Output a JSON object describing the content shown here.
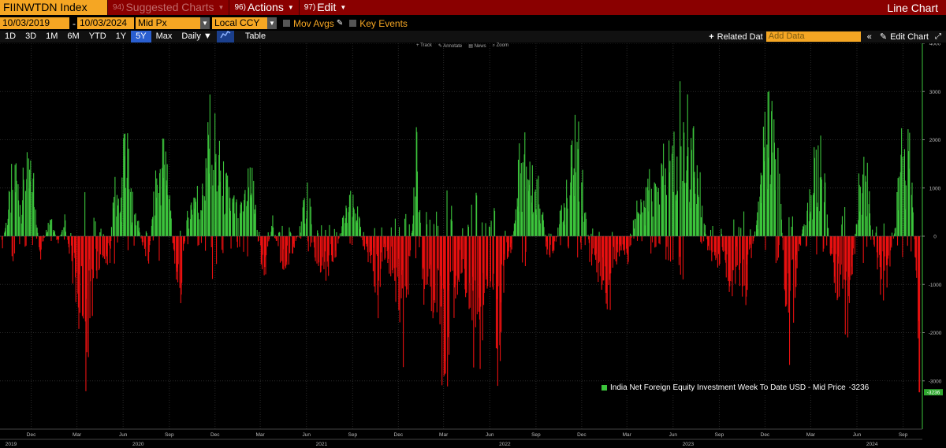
{
  "toolbar": {
    "ticker": "FIINWTDN Index",
    "suggested_num": "94)",
    "suggested_label": "Suggested Charts",
    "actions_num": "96)",
    "actions_label": "Actions",
    "edit_num": "97)",
    "edit_label": "Edit",
    "chart_type": "Line Chart"
  },
  "settings": {
    "start_date": "10/03/2019",
    "end_date": "10/03/2024",
    "date_sep": "-",
    "price_field": "Mid Px",
    "currency": "Local CCY",
    "mov_avgs": "Mov Avgs",
    "key_events": "Key Events"
  },
  "periods": [
    "1D",
    "3D",
    "1M",
    "6M",
    "YTD",
    "1Y",
    "5Y",
    "Max"
  ],
  "active_period": "5Y",
  "frequency": "Daily",
  "table_label": "Table",
  "related_data": "Related Dat",
  "add_data_placeholder": "Add Data",
  "edit_chart": "Edit Chart",
  "chart_tools": [
    "Track",
    "Annotate",
    "News",
    "Zoom"
  ],
  "colors": {
    "positive": "#3cc43c",
    "negative": "#e81010",
    "accent": "#f5a623",
    "topbar": "#8a0000"
  },
  "chart_data": {
    "type": "bar",
    "legend": {
      "label": "India Net Foreign Equity Investment Week To Date USD - Mid Price",
      "value": "-3236",
      "placement": "bottom-right"
    },
    "last_value": -3236,
    "last_value_label": "-3236",
    "ylim": [
      -4000,
      4000
    ],
    "y_ticks": [
      4000,
      3000,
      2000,
      1000,
      0,
      -1000,
      -2000,
      -3000
    ],
    "x_start": "2019-10-03",
    "x_end": "2024-10-03",
    "x_ticks": [
      {
        "label": "Dec",
        "date": "2019-12-01"
      },
      {
        "label": "Mar",
        "date": "2020-03-01"
      },
      {
        "label": "Jun",
        "date": "2020-06-01"
      },
      {
        "label": "Sep",
        "date": "2020-09-01"
      },
      {
        "label": "Dec",
        "date": "2020-12-01"
      },
      {
        "label": "Mar",
        "date": "2021-03-01"
      },
      {
        "label": "Jun",
        "date": "2021-06-01"
      },
      {
        "label": "Sep",
        "date": "2021-09-01"
      },
      {
        "label": "Dec",
        "date": "2021-12-01"
      },
      {
        "label": "Mar",
        "date": "2022-03-01"
      },
      {
        "label": "Jun",
        "date": "2022-06-01"
      },
      {
        "label": "Sep",
        "date": "2022-09-01"
      },
      {
        "label": "Dec",
        "date": "2022-12-01"
      },
      {
        "label": "Mar",
        "date": "2023-03-01"
      },
      {
        "label": "Jun",
        "date": "2023-06-01"
      },
      {
        "label": "Sep",
        "date": "2023-09-01"
      },
      {
        "label": "Dec",
        "date": "2023-12-01"
      },
      {
        "label": "Mar",
        "date": "2024-03-01"
      },
      {
        "label": "Jun",
        "date": "2024-06-01"
      },
      {
        "label": "Sep",
        "date": "2024-09-01"
      }
    ],
    "year_labels": [
      {
        "label": "2019",
        "date": "2019-10-03"
      },
      {
        "label": "2020",
        "date": "2020-07-01"
      },
      {
        "label": "2021",
        "date": "2021-07-01"
      },
      {
        "label": "2022",
        "date": "2022-07-01"
      },
      {
        "label": "2023",
        "date": "2023-07-01"
      },
      {
        "label": "2024",
        "date": "2024-07-01"
      }
    ],
    "series_points": [
      [
        "2019-10-03",
        -300
      ],
      [
        "2019-10-17",
        800
      ],
      [
        "2019-10-28",
        1800
      ],
      [
        "2019-11-08",
        900
      ],
      [
        "2019-11-20",
        1500
      ],
      [
        "2019-12-05",
        1300
      ],
      [
        "2019-12-18",
        -500
      ],
      [
        "2020-01-08",
        600
      ],
      [
        "2020-01-22",
        -200
      ],
      [
        "2020-02-05",
        400
      ],
      [
        "2020-02-20",
        -800
      ],
      [
        "2020-03-02",
        -1500
      ],
      [
        "2020-03-10",
        -2200
      ],
      [
        "2020-03-17",
        -2800
      ],
      [
        "2020-03-26",
        -1800
      ],
      [
        "2020-04-08",
        -900
      ],
      [
        "2020-04-20",
        -400
      ],
      [
        "2020-05-05",
        -600
      ],
      [
        "2020-05-14",
        1700
      ],
      [
        "2020-05-25",
        500
      ],
      [
        "2020-06-04",
        2500
      ],
      [
        "2020-06-15",
        1000
      ],
      [
        "2020-06-29",
        400
      ],
      [
        "2020-07-10",
        -300
      ],
      [
        "2020-07-22",
        -500
      ],
      [
        "2020-08-03",
        1200
      ],
      [
        "2020-08-14",
        2000
      ],
      [
        "2020-08-28",
        1800
      ],
      [
        "2020-09-08",
        -400
      ],
      [
        "2020-09-22",
        -1300
      ],
      [
        "2020-10-05",
        400
      ],
      [
        "2020-10-20",
        1100
      ],
      [
        "2020-11-04",
        900
      ],
      [
        "2020-11-13",
        1900
      ],
      [
        "2020-11-24",
        2800
      ],
      [
        "2020-12-04",
        2000
      ],
      [
        "2020-12-15",
        1400
      ],
      [
        "2021-01-05",
        800
      ],
      [
        "2021-01-20",
        600
      ],
      [
        "2021-02-03",
        1600
      ],
      [
        "2021-02-15",
        1200
      ],
      [
        "2021-02-26",
        -400
      ],
      [
        "2021-03-10",
        -800
      ],
      [
        "2021-03-24",
        500
      ],
      [
        "2021-04-07",
        -600
      ],
      [
        "2021-04-20",
        -800
      ],
      [
        "2021-05-05",
        -300
      ],
      [
        "2021-05-20",
        300
      ],
      [
        "2021-06-04",
        1300
      ],
      [
        "2021-06-18",
        -500
      ],
      [
        "2021-07-02",
        -900
      ],
      [
        "2021-07-16",
        -700
      ],
      [
        "2021-07-29",
        -400
      ],
      [
        "2021-08-12",
        400
      ],
      [
        "2021-08-27",
        800
      ],
      [
        "2021-09-10",
        600
      ],
      [
        "2021-09-24",
        -400
      ],
      [
        "2021-10-08",
        -600
      ],
      [
        "2021-10-22",
        -1500
      ],
      [
        "2021-11-05",
        -400
      ],
      [
        "2021-11-19",
        -900
      ],
      [
        "2021-12-03",
        -1500
      ],
      [
        "2021-12-10",
        -2400
      ],
      [
        "2021-12-20",
        -1300
      ],
      [
        "2022-01-06",
        2100
      ],
      [
        "2022-01-20",
        -1600
      ],
      [
        "2022-02-03",
        -1300
      ],
      [
        "2022-02-17",
        -2500
      ],
      [
        "2022-03-03",
        -2800
      ],
      [
        "2022-03-11",
        -2500
      ],
      [
        "2022-03-24",
        -1500
      ],
      [
        "2022-04-07",
        -600
      ],
      [
        "2022-04-21",
        -1800
      ],
      [
        "2022-05-05",
        -2800
      ],
      [
        "2022-05-20",
        -1800
      ],
      [
        "2022-06-03",
        -900
      ],
      [
        "2022-06-17",
        -2900
      ],
      [
        "2022-07-01",
        -500
      ],
      [
        "2022-07-15",
        -300
      ],
      [
        "2022-07-29",
        1700
      ],
      [
        "2022-08-12",
        2000
      ],
      [
        "2022-08-26",
        1200
      ],
      [
        "2022-09-09",
        1000
      ],
      [
        "2022-09-23",
        -600
      ],
      [
        "2022-10-07",
        -400
      ],
      [
        "2022-10-21",
        700
      ],
      [
        "2022-11-04",
        1100
      ],
      [
        "2022-11-18",
        2600
      ],
      [
        "2022-12-02",
        1300
      ],
      [
        "2022-12-16",
        -500
      ],
      [
        "2023-01-06",
        -900
      ],
      [
        "2023-01-20",
        -1800
      ],
      [
        "2023-02-03",
        -600
      ],
      [
        "2023-02-17",
        -400
      ],
      [
        "2023-03-03",
        -700
      ],
      [
        "2023-03-17",
        800
      ],
      [
        "2023-03-31",
        600
      ],
      [
        "2023-04-14",
        1200
      ],
      [
        "2023-04-28",
        1000
      ],
      [
        "2023-05-12",
        1600
      ],
      [
        "2023-05-26",
        2000
      ],
      [
        "2023-06-09",
        1800
      ],
      [
        "2023-06-16",
        3400
      ],
      [
        "2023-06-30",
        2400
      ],
      [
        "2023-07-14",
        1900
      ],
      [
        "2023-07-28",
        800
      ],
      [
        "2023-08-11",
        -600
      ],
      [
        "2023-08-25",
        -800
      ],
      [
        "2023-09-08",
        -400
      ],
      [
        "2023-09-22",
        -1300
      ],
      [
        "2023-10-06",
        -800
      ],
      [
        "2023-10-20",
        -1500
      ],
      [
        "2023-11-03",
        -400
      ],
      [
        "2023-11-17",
        600
      ],
      [
        "2023-12-01",
        2600
      ],
      [
        "2023-12-15",
        2700
      ],
      [
        "2023-12-29",
        1300
      ],
      [
        "2024-01-12",
        -1800
      ],
      [
        "2024-01-19",
        -2400
      ],
      [
        "2024-02-02",
        -800
      ],
      [
        "2024-02-16",
        400
      ],
      [
        "2024-03-01",
        1100
      ],
      [
        "2024-03-15",
        2200
      ],
      [
        "2024-03-29",
        1000
      ],
      [
        "2024-04-12",
        -1000
      ],
      [
        "2024-04-26",
        -1200
      ],
      [
        "2024-05-10",
        -2000
      ],
      [
        "2024-05-24",
        -900
      ],
      [
        "2024-06-07",
        1700
      ],
      [
        "2024-06-21",
        1400
      ],
      [
        "2024-07-05",
        -400
      ],
      [
        "2024-07-19",
        -1200
      ],
      [
        "2024-08-02",
        -1000
      ],
      [
        "2024-08-16",
        300
      ],
      [
        "2024-08-30",
        2500
      ],
      [
        "2024-09-13",
        1800
      ],
      [
        "2024-09-20",
        1000
      ],
      [
        "2024-09-27",
        -1500
      ],
      [
        "2024-10-03",
        -3236
      ]
    ]
  }
}
